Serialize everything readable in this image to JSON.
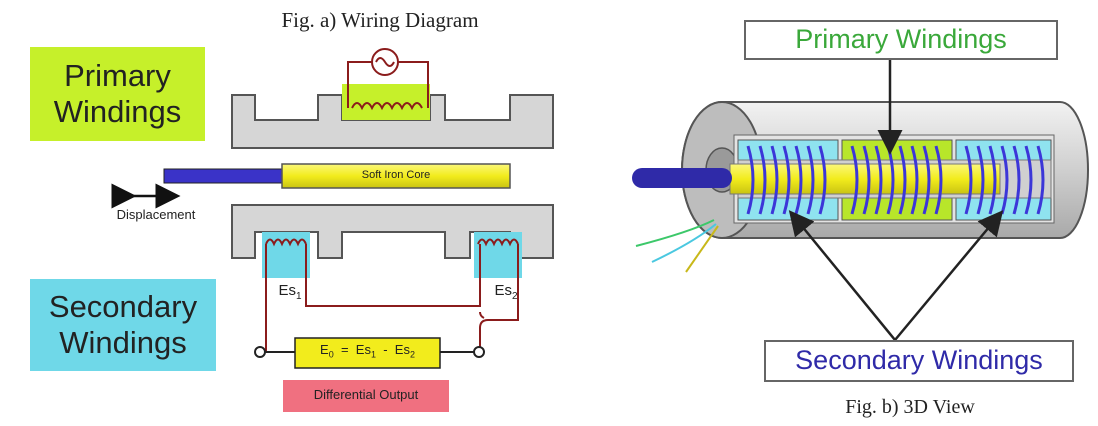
{
  "fig_a": {
    "caption": "Fig. a) Wiring Diagram",
    "primary_label_line1": "Primary",
    "primary_label_line2": "Windings",
    "secondary_label_line1": "Secondary",
    "secondary_label_line2": "Windings",
    "core_label": "Soft Iron Core",
    "displacement_label": "Displacement",
    "es1_label": "Es",
    "es1_sub": "1",
    "es2_label": "Es",
    "es2_sub": "2",
    "formula": {
      "e0": "E",
      "e0_sub": "0",
      "eq": "=",
      "term1": "Es",
      "term1_sub": "1",
      "minus": "-",
      "term2": "Es",
      "term2_sub": "2"
    },
    "output_label": "Differential Output"
  },
  "fig_b": {
    "caption": "Fig. b) 3D View",
    "primary_label": "Primary Windings",
    "secondary_label": "Secondary Windings"
  },
  "colors": {
    "primary_box": "#c6f02a",
    "secondary_box": "#6fd8e8",
    "core": "#f2ec1c",
    "rod": "#3a33c8",
    "winding_blue": "#3c36d8",
    "wire": "#8b1c1c",
    "output_box": "#f07080",
    "primary_text": "#3aa83a",
    "secondary_text": "#2f2aa8"
  }
}
